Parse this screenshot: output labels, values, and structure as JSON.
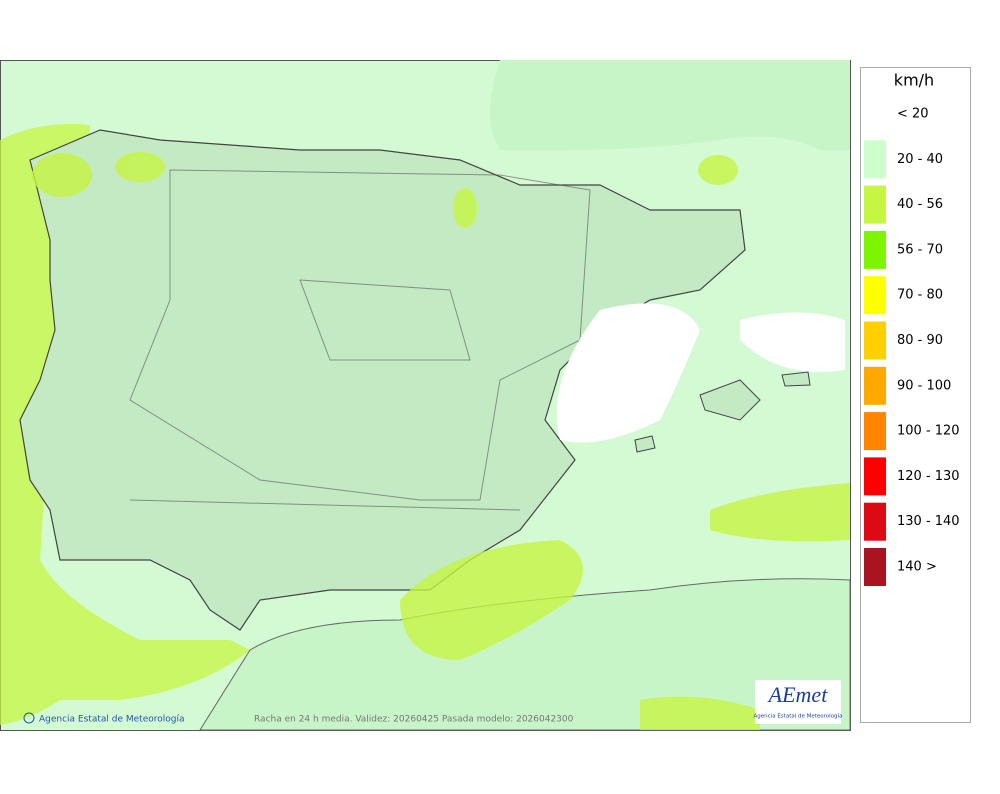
{
  "legend": {
    "unit": "km/h",
    "items": [
      {
        "label": "< 20"
      },
      {
        "label": "20 - 40",
        "color": "#ccffcc"
      },
      {
        "label": "40 - 56",
        "color": "#c6f542"
      },
      {
        "label": "56 - 70",
        "color": "#7ef500"
      },
      {
        "label": "70 - 80",
        "color": "#ffff00"
      },
      {
        "label": "80 - 90",
        "color": "#ffd000"
      },
      {
        "label": "90 - 100",
        "color": "#ffa800"
      },
      {
        "label": "100 - 120",
        "color": "#ff8400"
      },
      {
        "label": "120 - 130",
        "color": "#ff0000"
      },
      {
        "label": "130 - 140",
        "color": "#dd0a14"
      },
      {
        "label": "140 >",
        "color": "#aa1420"
      }
    ]
  },
  "footer": {
    "credit": "Agencia Estatal de Meteorología",
    "caption": "Racha en 24 h media. Validez: 20260425 Pasada modelo: 2026042300"
  },
  "logo": {
    "name": "AEmet",
    "subtitle": "Agencia Estatal de Meteorología"
  }
}
